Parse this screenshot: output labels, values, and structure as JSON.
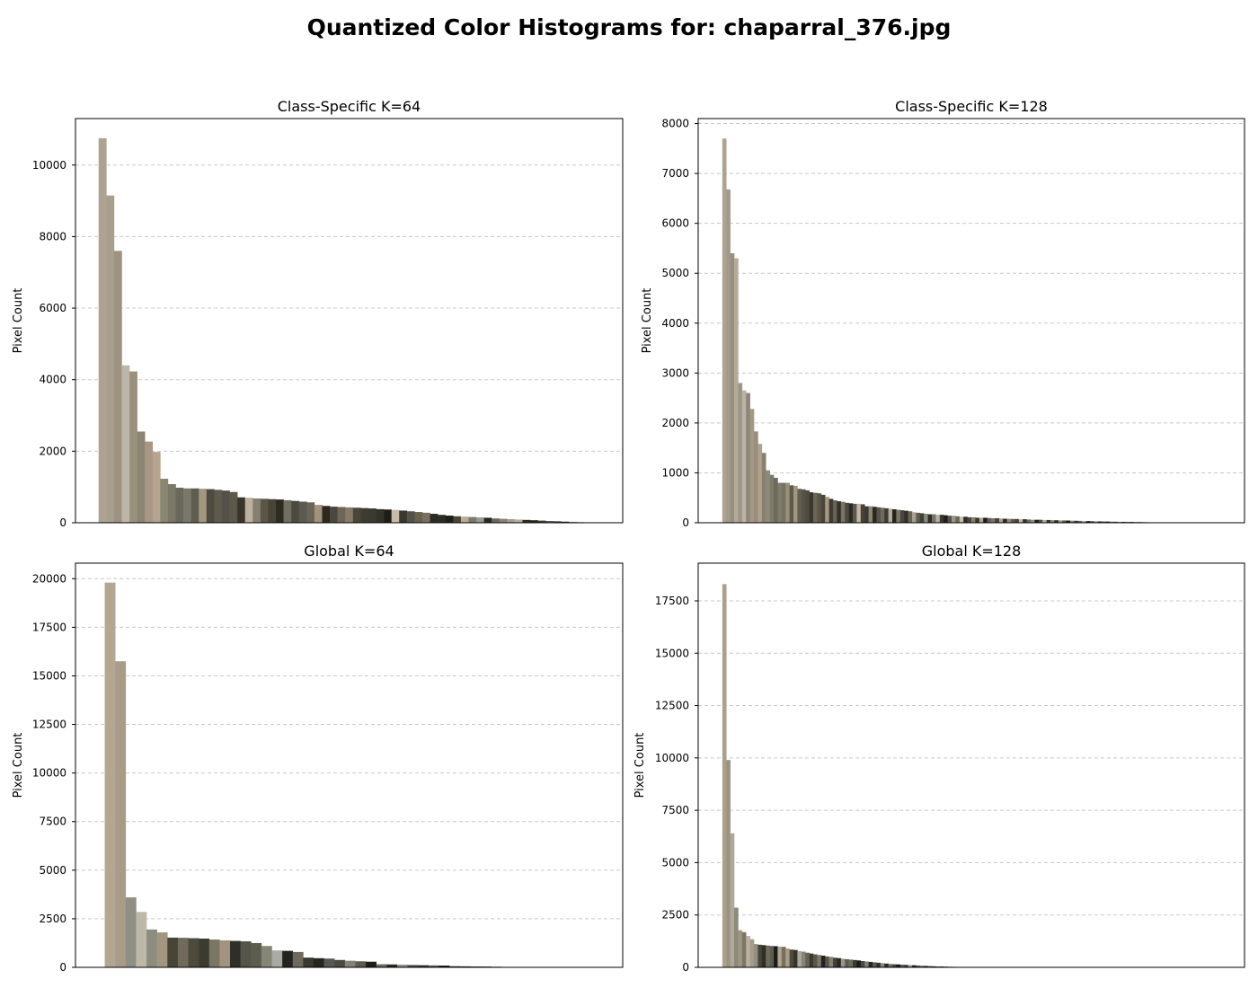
{
  "figure": {
    "title": "Quantized Color Histograms for: chaparral_376.jpg"
  },
  "chart_data": [
    {
      "type": "bar",
      "title": "Class-Specific K=64",
      "ylabel": "Pixel Count",
      "xlim": [
        -3.5,
        67.5
      ],
      "ylim": [
        0,
        11300
      ],
      "yticks": [
        0,
        2000,
        4000,
        6000,
        8000,
        10000
      ],
      "grid": "y-dashed",
      "values": [
        10750,
        9150,
        7600,
        4400,
        4230,
        2550,
        2270,
        1980,
        1230,
        1080,
        980,
        960,
        960,
        950,
        940,
        920,
        900,
        860,
        710,
        700,
        680,
        670,
        660,
        650,
        630,
        610,
        590,
        570,
        500,
        470,
        450,
        440,
        430,
        420,
        410,
        400,
        380,
        370,
        360,
        340,
        320,
        300,
        280,
        250,
        220,
        200,
        180,
        170,
        160,
        150,
        140,
        120,
        110,
        100,
        90,
        80,
        70,
        60,
        50,
        40,
        30,
        20,
        15,
        10
      ],
      "colors": [
        "#aea392",
        "#a8a08f",
        "#9e9380",
        "#bdb6a8",
        "#99917e",
        "#8d8574",
        "#a79784",
        "#b5a48f",
        "#898674",
        "#7c7867",
        "#6a685a",
        "#7a786b",
        "#5f5c4f",
        "#a39681",
        "#4f4b40",
        "#5f5a4c",
        "#54514a",
        "#5c584b",
        "#39352b",
        "#bdb29e",
        "#858070",
        "#5b5647",
        "#494536",
        "#2e2b20",
        "#726e60",
        "#4a4a40",
        "#5b5a4e",
        "#686456",
        "#a1927c",
        "#2c281e",
        "#4a473e",
        "#6e6554",
        "#877c6a",
        "#4a4638",
        "#3e3d33",
        "#3c3a2e",
        "#33322a",
        "#1e1e19",
        "#c8bca8",
        "#38372c",
        "#54524b",
        "#6b6150",
        "#7a6e5e",
        "#2b2b25",
        "#2d2c24",
        "#1f1f1a",
        "#454539",
        "#b9ad97",
        "#7d7a6c",
        "#9a9a98",
        "#282822",
        "#6b6a60",
        "#8b8472",
        "#a69e8e",
        "#b7b0a2",
        "#2a2a22",
        "#222218",
        "#3a3a30",
        "#5a5a50",
        "#2f2e27",
        "#1a1a14",
        "#3e3c33",
        "#151510",
        "#54544c"
      ]
    },
    {
      "type": "bar",
      "title": "Class-Specific K=128",
      "ylabel": "Pixel Count",
      "xlim": [
        -6.6,
        131.6
      ],
      "ylim": [
        0,
        8100
      ],
      "yticks": [
        0,
        1000,
        2000,
        3000,
        4000,
        5000,
        6000,
        7000,
        8000
      ],
      "grid": "y-dashed",
      "values": [
        7700,
        6680,
        5400,
        5300,
        2800,
        2650,
        2600,
        2280,
        1830,
        1580,
        1400,
        1050,
        960,
        900,
        800,
        800,
        800,
        750,
        740,
        680,
        670,
        650,
        610,
        600,
        590,
        560,
        520,
        480,
        450,
        430,
        420,
        400,
        390,
        380,
        380,
        370,
        330,
        330,
        320,
        310,
        300,
        290,
        280,
        270,
        260,
        250,
        240,
        230,
        210,
        200,
        190,
        180,
        170,
        170,
        160,
        160,
        150,
        140,
        140,
        130,
        120,
        120,
        110,
        110,
        100,
        100,
        100,
        95,
        90,
        90,
        85,
        80,
        80,
        75,
        75,
        70,
        70,
        65,
        60,
        60,
        60,
        55,
        55,
        50,
        50,
        48,
        46,
        44,
        42,
        40,
        38,
        36,
        34,
        32,
        30,
        28,
        26,
        24,
        22,
        20,
        19,
        18,
        17,
        16,
        15,
        14,
        13,
        12
      ],
      "colors": [
        "#aea392",
        "#a39a88",
        "#98907f",
        "#b3aa99",
        "#9d9585",
        "#bab3a6",
        "#8e8777",
        "#a59885",
        "#998e7b",
        "#b0a18c",
        "#87826f",
        "#8d8a7a",
        "#7d7a6a",
        "#6d6a5c",
        "#807b6a",
        "#767263",
        "#9a8e78",
        "#5d5a4c",
        "#a19682",
        "#625f51",
        "#575447",
        "#4f4b3e",
        "#3b382e",
        "#6c6656",
        "#5a5648",
        "#4a463a",
        "#a79982",
        "#3f3c31",
        "#666254",
        "#33302a",
        "#7a7466",
        "#4c4a40",
        "#2c2a22",
        "#5b5a50",
        "#c2b8a5",
        "#444239",
        "#3a3930",
        "#8d8370",
        "#2a2821",
        "#55534a",
        "#6f6a5d",
        "#3c3b33",
        "#b5aa96",
        "#252520",
        "#7f7665",
        "#48473f",
        "#31302a",
        "#686356",
        "#a6a093",
        "#5e5c53",
        "#423f35",
        "#8a8a84",
        "#2d2d27",
        "#75726a",
        "#b9b2a3",
        "#3a382f",
        "#1f1f1a",
        "#54524a",
        "#9b968a",
        "#6a6659",
        "#c5bdad",
        "#2c2b24",
        "#4a4941",
        "#85806f",
        "#36352d",
        "#aea796",
        "#1c1c17",
        "#60605a",
        "#7b7668",
        "#3f3e37",
        "#a89f8d",
        "#27271f",
        "#91897a",
        "#5b5950",
        "#434238",
        "#c0b6a3",
        "#303028",
        "#6b6a62",
        "#969082",
        "#1e1e19",
        "#4e4e46",
        "#bdb2a0",
        "#3b3a31",
        "#7f7c72",
        "#2a2a24",
        "#a1998a",
        "#55554d",
        "#171713",
        "#8e8a80",
        "#3a3a34",
        "#6a675d",
        "#b3ab9c",
        "#25251f",
        "#4a4a43",
        "#97958c",
        "#2e2e28",
        "#5f5e56",
        "#1b1b16",
        "#847f72",
        "#42423b",
        "#a6a090",
        "#32322c",
        "#6f6e66",
        "#15150f",
        "#908b7e",
        "#3e3e37",
        "#55554e",
        "#b8b09f"
      ]
    },
    {
      "type": "bar",
      "title": "Global K=64",
      "ylabel": "Pixel Count",
      "xlim": [
        -3.3,
        49.1
      ],
      "ylim": [
        0,
        20800
      ],
      "yticks": [
        0,
        2500,
        5000,
        7500,
        10000,
        12500,
        15000,
        17500,
        20000
      ],
      "grid": "y-dashed",
      "values": [
        19800,
        15750,
        3600,
        2850,
        1950,
        1800,
        1530,
        1520,
        1500,
        1480,
        1430,
        1390,
        1360,
        1340,
        1250,
        1100,
        870,
        850,
        790,
        500,
        470,
        450,
        380,
        340,
        310,
        290,
        160,
        150,
        140,
        120,
        110,
        100,
        90,
        60,
        50,
        45,
        40,
        30
      ],
      "colors": [
        "#b3a794",
        "#a99c87",
        "#8f8f85",
        "#bdb8a8",
        "#8c8d7e",
        "#a39681",
        "#484536",
        "#6f6a5b",
        "#4c4a3c",
        "#3c3b30",
        "#7a7565",
        "#a19380",
        "#2f2f27",
        "#55554a",
        "#5d5d4f",
        "#858676",
        "#a9aaa4",
        "#24241f",
        "#6d6a5c",
        "#383830",
        "#26261f",
        "#545956",
        "#4b4b43",
        "#83837a",
        "#5a5a50",
        "#1e1e19",
        "#6b6b65",
        "#2b2b25",
        "#8f8f88",
        "#4a4a44",
        "#333330",
        "#5a5a56",
        "#1a1a16",
        "#3e3e3b",
        "#222220",
        "#404040",
        "#2a2a28",
        "#1c1c1a"
      ]
    },
    {
      "type": "bar",
      "title": "Global K=128",
      "ylabel": "Pixel Count",
      "xlim": [
        -6.6,
        131.6
      ],
      "ylim": [
        0,
        19300
      ],
      "yticks": [
        0,
        2500,
        5000,
        7500,
        10000,
        12500,
        15000,
        17500
      ],
      "grid": "y-dashed",
      "values": [
        18300,
        9900,
        6400,
        2850,
        1770,
        1680,
        1500,
        1340,
        1110,
        1080,
        1060,
        1040,
        1020,
        1010,
        990,
        980,
        900,
        850,
        830,
        780,
        750,
        700,
        660,
        620,
        590,
        560,
        520,
        500,
        460,
        440,
        410,
        390,
        370,
        350,
        330,
        300,
        280,
        260,
        240,
        220,
        200,
        180,
        160,
        150,
        140,
        130,
        120,
        110,
        100,
        90,
        80,
        70,
        60,
        50,
        45,
        40,
        35,
        30,
        25,
        20,
        15,
        12,
        10,
        8,
        6,
        5,
        4,
        3,
        2,
        1
      ],
      "colors": [
        "#aca08d",
        "#9c9482",
        "#b1a896",
        "#8a8b7c",
        "#a2957f",
        "#7b7766",
        "#bcb0a0",
        "#a59b88",
        "#8e8f86",
        "#484536",
        "#2f2f27",
        "#6f6a5b",
        "#5d5d4f",
        "#1d1d18",
        "#b0a58f",
        "#75705e",
        "#a99c85",
        "#4c4a3c",
        "#36352b",
        "#aaa8a0",
        "#858676",
        "#66635a",
        "#3c3b30",
        "#5a5547",
        "#7d7868",
        "#24241f",
        "#56544b",
        "#8a8070",
        "#42423a",
        "#2b2a24",
        "#9a9580",
        "#5e5c52",
        "#6d6a5c",
        "#3a3a32",
        "#1e1e19",
        "#4b4b43",
        "#80807a",
        "#282822",
        "#5a5a50",
        "#33332c",
        "#8f887a",
        "#2a2a24",
        "#6b6b65",
        "#474741",
        "#1a1a16",
        "#5c5b53",
        "#3e3e38",
        "#9b9a93",
        "#22221e",
        "#54544e",
        "#72716a",
        "#303029",
        "#4a4a44",
        "#2a2a26",
        "#606059",
        "#1c1c18",
        "#3b3b36",
        "#7a7970",
        "#2d2d28",
        "#464640",
        "#585852",
        "#262622",
        "#343430",
        "#686862",
        "#1f1f1b",
        "#4e4e48",
        "#3a3a35",
        "#2b2b27",
        "#555550",
        "#2e2e2a"
      ]
    }
  ]
}
